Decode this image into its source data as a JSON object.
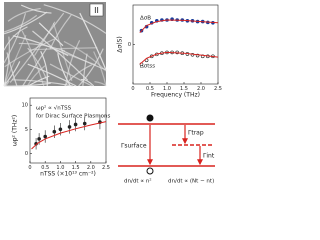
{
  "image": {
    "label": "II"
  },
  "chart_data": [
    {
      "type": "scatter",
      "xlabel": "Frequency (THz)",
      "ylabel": "Δσ(S)",
      "annotations": [
        "ΔσB",
        "Δσtss"
      ],
      "xlim": [
        0,
        2.5
      ],
      "ylim": [
        -1,
        1
      ],
      "yticks": [
        0
      ],
      "xticks": [
        0,
        {
          "value": 0.5,
          "label": "0.5"
        },
        {
          "value": 1.0,
          "label": "1.0"
        },
        {
          "value": 1.5,
          "label": "1.5"
        },
        {
          "value": 2.0,
          "label": "2.0"
        },
        {
          "value": 2.5,
          "label": "2.5"
        }
      ],
      "series": [
        {
          "mode": "markers",
          "marker": "filled",
          "color": "#1a3d9c",
          "x": [
            0.25,
            0.4,
            0.55,
            0.7,
            0.85,
            1.0,
            1.15,
            1.3,
            1.45,
            1.6,
            1.75,
            1.9,
            2.05,
            2.2,
            2.35
          ],
          "values": [
            0.35,
            0.45,
            0.55,
            0.6,
            0.62,
            0.62,
            0.64,
            0.62,
            0.62,
            0.6,
            0.6,
            0.58,
            0.58,
            0.56,
            0.55
          ]
        },
        {
          "mode": "line",
          "color": "#d8231f",
          "x": [
            0.2,
            0.4,
            0.7,
            1.0,
            1.5,
            2.0,
            2.5
          ],
          "values": [
            0.3,
            0.48,
            0.58,
            0.62,
            0.61,
            0.58,
            0.55
          ]
        },
        {
          "mode": "markers",
          "marker": "open",
          "color": "#222222",
          "x": [
            0.25,
            0.4,
            0.55,
            0.7,
            0.85,
            1.0,
            1.15,
            1.3,
            1.45,
            1.6,
            1.75,
            1.9,
            2.05,
            2.2,
            2.35
          ],
          "values": [
            -0.5,
            -0.4,
            -0.3,
            -0.25,
            -0.22,
            -0.2,
            -0.2,
            -0.2,
            -0.22,
            -0.24,
            -0.26,
            -0.28,
            -0.3,
            -0.3,
            -0.3
          ]
        },
        {
          "mode": "line",
          "color": "#d8231f",
          "x": [
            0.2,
            0.4,
            0.7,
            1.0,
            1.5,
            2.0,
            2.5
          ],
          "values": [
            -0.5,
            -0.35,
            -0.24,
            -0.2,
            -0.22,
            -0.27,
            -0.32
          ]
        }
      ]
    },
    {
      "type": "scatter",
      "xlabel": "nTSS (×10¹³ cm⁻²)",
      "ylabel": "ωp² (THz²)",
      "annotations": [
        "ωp² ∝ √nTSS",
        "for Dirac Surface Plasmons"
      ],
      "xlim": [
        0,
        2.5
      ],
      "ylim": [
        -2,
        11.5
      ],
      "yticks": [
        0,
        5,
        10
      ],
      "xticks": [
        0,
        {
          "value": 0.5,
          "label": "0.5"
        },
        {
          "value": 1.0,
          "label": "1.0"
        },
        {
          "value": 1.5,
          "label": "1.5"
        },
        {
          "value": 2.0,
          "label": "2.0"
        },
        {
          "value": 2.5,
          "label": "2.5"
        }
      ],
      "series": [
        {
          "mode": "markers",
          "marker": "filled",
          "color": "#222222",
          "x": [
            0.2,
            0.3,
            0.5,
            0.8,
            1.0,
            1.3,
            1.5,
            1.8,
            2.3
          ],
          "values": [
            2,
            3,
            3.5,
            4.5,
            5,
            5.5,
            6,
            6.2,
            6.5
          ],
          "errors": [
            1.2,
            1.2,
            1.3,
            1.3,
            1.3,
            1.4,
            1.4,
            1.4,
            1.5
          ]
        },
        {
          "mode": "line",
          "color": "#d8231f",
          "x": [
            0.05,
            0.25,
            0.5,
            1,
            1.5,
            2,
            2.5
          ],
          "values": [
            0.9,
            2.1,
            3,
            4.2,
            5.1,
            5.9,
            6.6
          ]
        }
      ]
    }
  ],
  "diagram": {
    "labels": [
      "Γsurface",
      "Γtrap",
      "Γint"
    ],
    "equations": [
      "dn/dt ∝ n²",
      "dn/dt ∝ (Nt − nt)"
    ]
  }
}
